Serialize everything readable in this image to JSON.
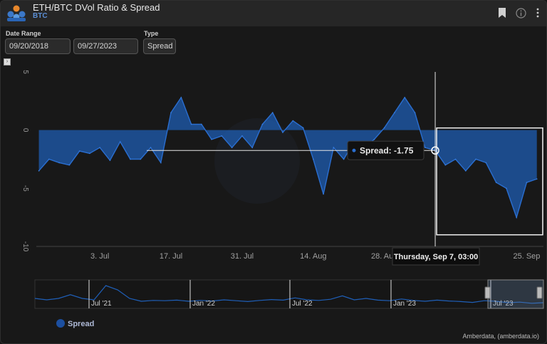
{
  "header": {
    "title": "ETH/BTC DVol Ratio & Spread",
    "subtitle": "BTC",
    "icons": [
      "bookmark-icon",
      "info-icon",
      "more-vertical-icon"
    ]
  },
  "controls": {
    "date_range_label": "Date Range",
    "start_date": "09/20/2018",
    "end_date": "09/27/2023",
    "type_label": "Type",
    "type_value": "Spread"
  },
  "chart_data": {
    "type": "area",
    "ylim": [
      -10,
      5
    ],
    "yticks": [
      "5",
      "0",
      "-5",
      "-10"
    ],
    "xlabels": [
      "3. Jul",
      "17. Jul",
      "31. Jul",
      "14. Aug",
      "28. Aug",
      "25. Sep"
    ],
    "series": [
      {
        "name": "Spread",
        "color": "#1f5fb8",
        "x": [
          "2023-06-21",
          "2023-06-23",
          "2023-06-25",
          "2023-06-27",
          "2023-06-29",
          "2023-07-01",
          "2023-07-03",
          "2023-07-05",
          "2023-07-07",
          "2023-07-09",
          "2023-07-11",
          "2023-07-13",
          "2023-07-15",
          "2023-07-17",
          "2023-07-19",
          "2023-07-21",
          "2023-07-23",
          "2023-07-25",
          "2023-07-27",
          "2023-07-29",
          "2023-07-31",
          "2023-08-02",
          "2023-08-04",
          "2023-08-06",
          "2023-08-08",
          "2023-08-10",
          "2023-08-12",
          "2023-08-14",
          "2023-08-16",
          "2023-08-18",
          "2023-08-20",
          "2023-08-22",
          "2023-08-24",
          "2023-08-26",
          "2023-08-28",
          "2023-08-30",
          "2023-09-01",
          "2023-09-03",
          "2023-09-05",
          "2023-09-07",
          "2023-09-09",
          "2023-09-11",
          "2023-09-13",
          "2023-09-15",
          "2023-09-17",
          "2023-09-19",
          "2023-09-21",
          "2023-09-23",
          "2023-09-25",
          "2023-09-27"
        ],
        "values": [
          -3.5,
          -2.5,
          -2.8,
          -3,
          -1.8,
          -2,
          -1.5,
          -2.6,
          -1,
          -2.5,
          -2.5,
          -1.5,
          -2.8,
          1.5,
          2.8,
          0.5,
          0.5,
          -0.8,
          -0.5,
          -1.5,
          -0.5,
          -1.5,
          0.5,
          1.5,
          -0.2,
          0.8,
          0.2,
          -2.5,
          -5.5,
          -1.5,
          -2.5,
          -1,
          -1.5,
          -0.8,
          0.2,
          1.5,
          2.8,
          1.5,
          -1.5,
          -1.75,
          -3,
          -2.5,
          -3.5,
          -2.5,
          -2.8,
          -4.5,
          -5,
          -7.5,
          -4.5,
          -4.2
        ]
      }
    ],
    "tooltip": {
      "series": "Spread",
      "value_text": "-1.75",
      "date_text": "Thursday, Sep 7, 03:00",
      "x": "2023-09-07",
      "y": -1.75
    },
    "navigator": {
      "labels": [
        "Jul '21",
        "Jan '22",
        "Jul '22",
        "Jan '23",
        "Jul '23"
      ],
      "values": [
        -0.5,
        -1,
        -0.5,
        0.8,
        -0.5,
        -1,
        4,
        2.5,
        -0.5,
        -1.5,
        -1.2,
        -1.3,
        -1.1,
        -1.5,
        -1.2,
        -1.4,
        -1,
        -1.3,
        -1.6,
        -1.2,
        -0.9,
        -1.1,
        -0.3,
        -1,
        -1.2,
        -0.8,
        0.4,
        -1,
        -0.5,
        -1.1,
        -1.3,
        -0.7,
        -1.2,
        -1.5,
        -1.1,
        -1.4,
        -1.6,
        -1.9,
        -1.3,
        -1.5,
        -2,
        -1.8,
        -2.2,
        -2
      ]
    },
    "legend": "bottom-left",
    "grid": false
  },
  "legend": {
    "items": [
      {
        "label": "Spread"
      }
    ]
  },
  "credit": "Amberdata, (amberdata.io)"
}
